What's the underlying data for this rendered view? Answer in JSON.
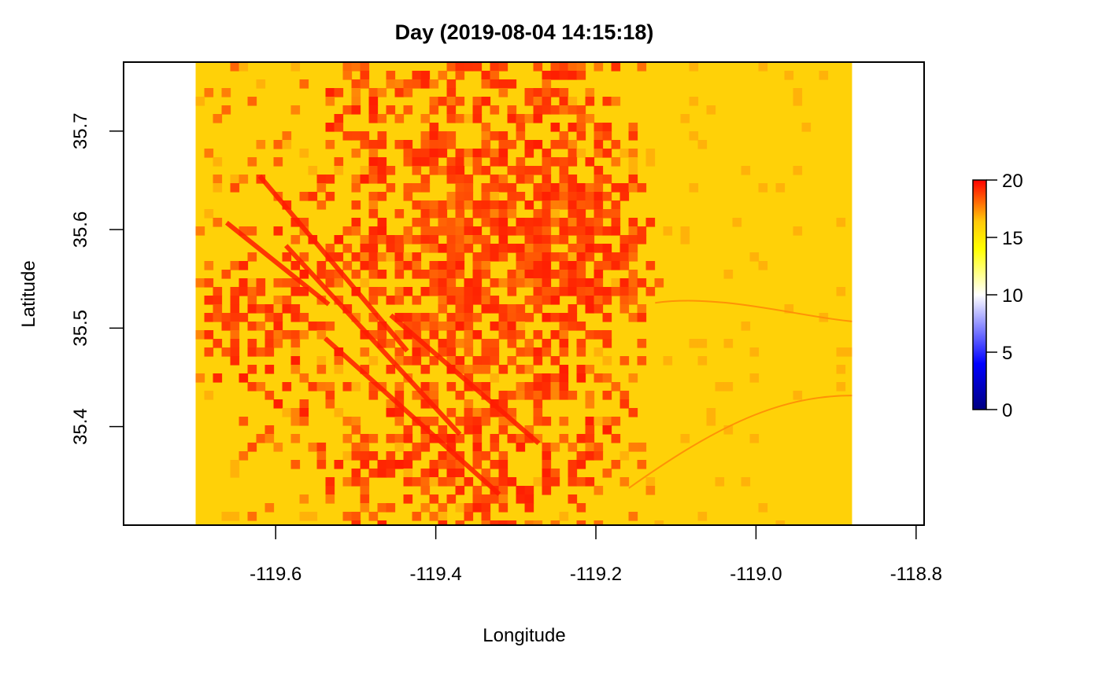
{
  "chart_data": {
    "type": "heatmap",
    "title": "Day (2019-08-04 14:15:18)",
    "xlabel": "Longitude",
    "ylabel": "Latitude",
    "xlim": [
      -119.79,
      -118.79
    ],
    "ylim": [
      35.3,
      35.77
    ],
    "raster_extent": {
      "lon": [
        -119.7,
        -118.88
      ],
      "lat": [
        35.3,
        35.77
      ]
    },
    "x_ticks": [
      {
        "value": -119.6,
        "label": "-119.6"
      },
      {
        "value": -119.4,
        "label": "-119.4"
      },
      {
        "value": -119.2,
        "label": "-119.2"
      },
      {
        "value": -119.0,
        "label": "-119.0"
      },
      {
        "value": -118.8,
        "label": "-118.8"
      }
    ],
    "y_ticks": [
      {
        "value": 35.4,
        "label": "35.4"
      },
      {
        "value": 35.5,
        "label": "35.5"
      },
      {
        "value": 35.6,
        "label": "35.6"
      },
      {
        "value": 35.7,
        "label": "35.7"
      }
    ],
    "colorbar": {
      "range": [
        0,
        20
      ],
      "ticks": [
        {
          "value": 0,
          "label": "0"
        },
        {
          "value": 5,
          "label": "5"
        },
        {
          "value": 10,
          "label": "10"
        },
        {
          "value": 15,
          "label": "15"
        },
        {
          "value": 20,
          "label": "20"
        }
      ],
      "colors": [
        "#000080",
        "#0000ff",
        "#ffffff",
        "#ffff00",
        "#ffc80a",
        "#ff0000"
      ]
    },
    "background_value": 16,
    "high_value": 19.5,
    "field_value": 17.5
  }
}
